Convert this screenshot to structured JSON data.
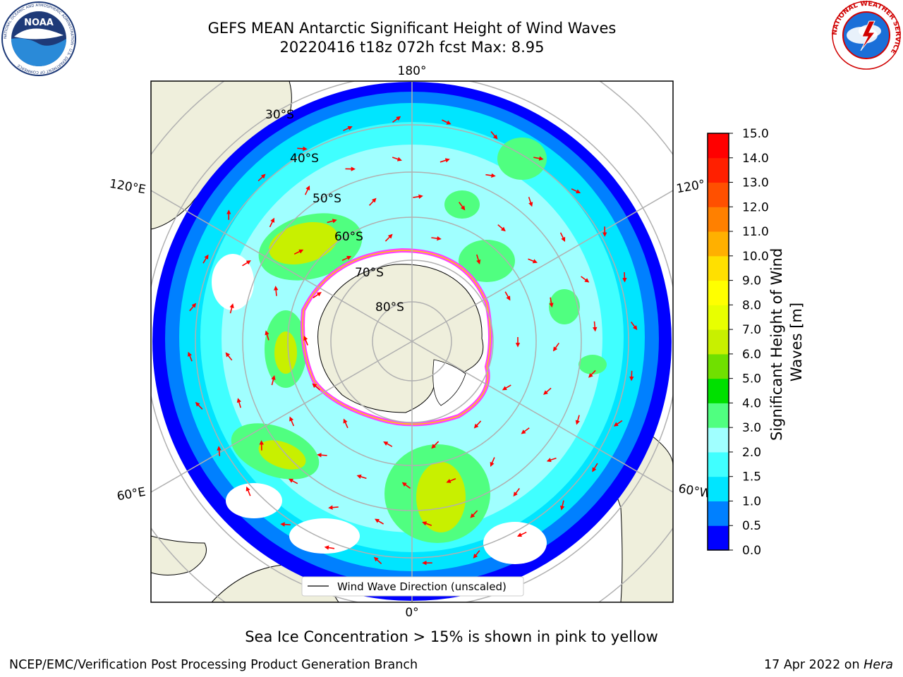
{
  "title_line1": "GEFS MEAN Antarctic Significant Height of Wind Waves",
  "title_line2": "20220416 t18z 072h fcst   Max: 8.95",
  "longitude_labels": {
    "top": "180°",
    "bottom": "0°",
    "left_upper": "120°E",
    "left_lower": "60°E",
    "right_upper": "120°",
    "right_lower": "60°W"
  },
  "latitude_labels": [
    "30°S",
    "40°S",
    "50°S",
    "60°S",
    "70°S",
    "80°S"
  ],
  "legend_label": "Wind Wave Direction (unscaled)",
  "colorbar": {
    "label": "Significant Height of Wind Waves [m]",
    "ticks": [
      "0.0",
      "0.5",
      "1.0",
      "1.5",
      "2.0",
      "3.0",
      "4.0",
      "5.0",
      "6.0",
      "7.0",
      "8.0",
      "9.0",
      "10.0",
      "11.0",
      "12.0",
      "13.0",
      "14.0",
      "15.0"
    ],
    "colors": [
      "#0000ff",
      "#0080ff",
      "#00e5ff",
      "#40ffff",
      "#a0ffff",
      "#50ff80",
      "#00e000",
      "#70e000",
      "#c8f000",
      "#e8ff00",
      "#ffff00",
      "#ffe000",
      "#ffb000",
      "#ff8000",
      "#ff5000",
      "#ff2000",
      "#ff0000"
    ]
  },
  "sea_ice_note": "Sea Ice Concentration > 15% is shown in pink to yellow",
  "footer_left": "NCEP/EMC/Verification Post Processing Product Generation Branch",
  "footer_right_date": "17 Apr 2022 on ",
  "footer_right_host": "Hera",
  "logos": {
    "noaa_text": "NOAA",
    "noaa_ring": "NATIONAL OCEANIC AND ATMOSPHERIC ADMINISTRATION · U.S. DEPARTMENT OF COMMERCE",
    "nws_ring": "NATIONAL WEATHER SERVICE"
  }
}
